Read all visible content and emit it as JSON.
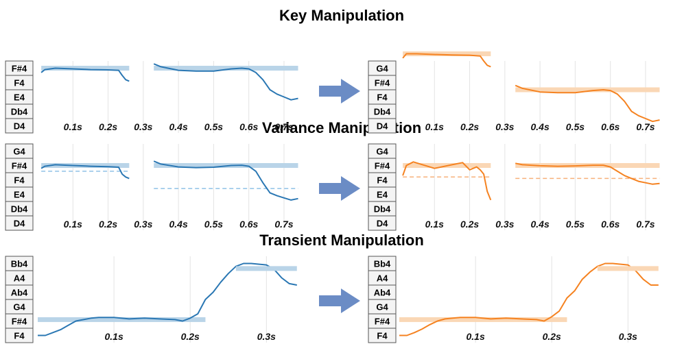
{
  "colors": {
    "blue": "#2a77b3",
    "blue_bar": "#b9d4e8",
    "orange": "#f58220",
    "orange_bar": "#fad7b5",
    "arrow": "#6b8cc5",
    "grid": "#e3e3e3"
  },
  "sections": [
    {
      "title": "Key Manipulation",
      "notes": [
        "D4",
        "Db4",
        "E4",
        "F4",
        "F#4"
      ],
      "notes_right": [
        "D4",
        "Db4",
        "F4",
        "F#4",
        "G4"
      ],
      "ticks": [
        "0.1s",
        "0.2s",
        "0.3s",
        "0.4s",
        "0.5s",
        "0.6s",
        "0.7s"
      ],
      "original": [
        {
          "bar_y": 4.0,
          "points": [
            [
              0.01,
              3.7
            ],
            [
              0.02,
              3.9
            ],
            [
              0.05,
              4.0
            ],
            [
              0.1,
              3.95
            ],
            [
              0.15,
              3.9
            ],
            [
              0.2,
              3.88
            ],
            [
              0.23,
              3.85
            ],
            [
              0.24,
              3.5
            ],
            [
              0.25,
              3.2
            ],
            [
              0.26,
              3.1
            ]
          ]
        },
        {
          "bar_y": 4.0,
          "points": [
            [
              0.33,
              4.3
            ],
            [
              0.35,
              4.1
            ],
            [
              0.4,
              3.85
            ],
            [
              0.45,
              3.8
            ],
            [
              0.5,
              3.8
            ],
            [
              0.55,
              3.95
            ],
            [
              0.58,
              4.0
            ],
            [
              0.6,
              3.95
            ],
            [
              0.62,
              3.7
            ],
            [
              0.64,
              3.2
            ],
            [
              0.66,
              2.5
            ],
            [
              0.68,
              2.2
            ],
            [
              0.7,
              2.0
            ],
            [
              0.72,
              1.8
            ],
            [
              0.74,
              1.9
            ]
          ]
        }
      ],
      "modified": [
        {
          "bar_y": 5.0,
          "points": [
            [
              0.01,
              4.7
            ],
            [
              0.02,
              5.0
            ],
            [
              0.05,
              5.0
            ],
            [
              0.1,
              4.95
            ],
            [
              0.15,
              4.92
            ],
            [
              0.2,
              4.9
            ],
            [
              0.23,
              4.85
            ],
            [
              0.24,
              4.5
            ],
            [
              0.25,
              4.2
            ],
            [
              0.26,
              4.1
            ]
          ]
        },
        {
          "bar_y": 2.5,
          "points": [
            [
              0.33,
              2.8
            ],
            [
              0.35,
              2.6
            ],
            [
              0.4,
              2.35
            ],
            [
              0.45,
              2.3
            ],
            [
              0.5,
              2.3
            ],
            [
              0.55,
              2.45
            ],
            [
              0.58,
              2.5
            ],
            [
              0.6,
              2.45
            ],
            [
              0.62,
              2.2
            ],
            [
              0.64,
              1.7
            ],
            [
              0.66,
              1.0
            ],
            [
              0.68,
              0.7
            ],
            [
              0.7,
              0.5
            ],
            [
              0.72,
              0.3
            ],
            [
              0.74,
              0.4
            ]
          ]
        }
      ]
    },
    {
      "title": "Variance Manipulation",
      "notes": [
        "D4",
        "Db4",
        "E4",
        "F4",
        "F#4",
        "G4"
      ],
      "notes_right": [
        "D4",
        "Db4",
        "E4",
        "F4",
        "F#4",
        "G4"
      ],
      "ticks": [
        "0.1s",
        "0.2s",
        "0.3s",
        "0.4s",
        "0.5s",
        "0.6s",
        "0.7s"
      ],
      "original": [
        {
          "bar_y": 4.0,
          "dash_y": 3.6,
          "points": [
            [
              0.01,
              3.8
            ],
            [
              0.02,
              3.95
            ],
            [
              0.05,
              4.05
            ],
            [
              0.1,
              4.0
            ],
            [
              0.15,
              3.95
            ],
            [
              0.2,
              3.92
            ],
            [
              0.23,
              3.88
            ],
            [
              0.24,
              3.4
            ],
            [
              0.25,
              3.2
            ],
            [
              0.26,
              3.1
            ]
          ]
        },
        {
          "bar_y": 4.0,
          "dash_y": 2.4,
          "points": [
            [
              0.33,
              4.3
            ],
            [
              0.35,
              4.1
            ],
            [
              0.4,
              3.9
            ],
            [
              0.45,
              3.85
            ],
            [
              0.5,
              3.88
            ],
            [
              0.55,
              4.0
            ],
            [
              0.58,
              4.02
            ],
            [
              0.6,
              3.95
            ],
            [
              0.62,
              3.6
            ],
            [
              0.64,
              2.8
            ],
            [
              0.66,
              2.1
            ],
            [
              0.68,
              1.9
            ],
            [
              0.7,
              1.75
            ],
            [
              0.72,
              1.6
            ],
            [
              0.74,
              1.7
            ]
          ]
        }
      ],
      "modified": [
        {
          "bar_y": 4.0,
          "dash_y": 3.2,
          "points": [
            [
              0.01,
              3.3
            ],
            [
              0.02,
              4.0
            ],
            [
              0.04,
              4.25
            ],
            [
              0.06,
              4.1
            ],
            [
              0.1,
              3.8
            ],
            [
              0.15,
              4.05
            ],
            [
              0.18,
              4.2
            ],
            [
              0.2,
              3.7
            ],
            [
              0.22,
              3.9
            ],
            [
              0.23,
              3.7
            ],
            [
              0.24,
              3.4
            ],
            [
              0.25,
              2.2
            ],
            [
              0.26,
              1.6
            ]
          ]
        },
        {
          "bar_y": 4.0,
          "dash_y": 3.1,
          "points": [
            [
              0.33,
              4.15
            ],
            [
              0.35,
              4.05
            ],
            [
              0.4,
              3.98
            ],
            [
              0.45,
              3.95
            ],
            [
              0.5,
              3.97
            ],
            [
              0.55,
              4.02
            ],
            [
              0.58,
              4.02
            ],
            [
              0.6,
              3.9
            ],
            [
              0.62,
              3.6
            ],
            [
              0.64,
              3.3
            ],
            [
              0.66,
              3.1
            ],
            [
              0.68,
              2.9
            ],
            [
              0.7,
              2.8
            ],
            [
              0.72,
              2.7
            ],
            [
              0.74,
              2.75
            ]
          ]
        }
      ]
    },
    {
      "title": "Transient Manipulation",
      "notes": [
        "F4",
        "F#4",
        "G4",
        "Ab4",
        "A4",
        "Bb4"
      ],
      "notes_right": [
        "F4",
        "F#4",
        "G4",
        "Ab4",
        "A4",
        "Bb4"
      ],
      "ticks": [
        "0.1s",
        "0.2s",
        "0.3s"
      ],
      "original": [
        {
          "bar_y": 1.1,
          "points": [
            [
              0.0,
              0.0
            ],
            [
              0.01,
              0.0
            ],
            [
              0.02,
              0.2
            ],
            [
              0.03,
              0.4
            ],
            [
              0.04,
              0.7
            ],
            [
              0.05,
              1.0
            ],
            [
              0.06,
              1.1
            ],
            [
              0.07,
              1.2
            ],
            [
              0.08,
              1.25
            ],
            [
              0.1,
              1.25
            ],
            [
              0.12,
              1.15
            ],
            [
              0.14,
              1.2
            ],
            [
              0.16,
              1.15
            ],
            [
              0.18,
              1.1
            ],
            [
              0.19,
              1.0
            ],
            [
              0.2,
              1.2
            ],
            [
              0.21,
              1.5
            ],
            [
              0.22,
              2.5
            ],
            [
              0.23,
              3.0
            ],
            [
              0.24,
              3.7
            ],
            [
              0.25,
              4.3
            ],
            [
              0.26,
              4.8
            ],
            [
              0.27,
              5.0
            ],
            [
              0.28,
              5.0
            ],
            [
              0.3,
              4.9
            ],
            [
              0.31,
              4.6
            ],
            [
              0.32,
              4.0
            ],
            [
              0.33,
              3.6
            ],
            [
              0.34,
              3.5
            ]
          ]
        },
        {
          "bar_y": 4.65,
          "points": []
        }
      ],
      "modified": [
        {
          "bar_y": 1.1,
          "points": [
            [
              0.0,
              0.0
            ],
            [
              0.01,
              0.0
            ],
            [
              0.02,
              0.2
            ],
            [
              0.03,
              0.45
            ],
            [
              0.04,
              0.75
            ],
            [
              0.05,
              1.0
            ],
            [
              0.06,
              1.15
            ],
            [
              0.07,
              1.2
            ],
            [
              0.08,
              1.25
            ],
            [
              0.1,
              1.25
            ],
            [
              0.12,
              1.15
            ],
            [
              0.14,
              1.2
            ],
            [
              0.16,
              1.15
            ],
            [
              0.18,
              1.1
            ],
            [
              0.19,
              1.0
            ],
            [
              0.2,
              1.3
            ],
            [
              0.21,
              1.7
            ],
            [
              0.22,
              2.6
            ],
            [
              0.23,
              3.1
            ],
            [
              0.24,
              3.9
            ],
            [
              0.25,
              4.4
            ],
            [
              0.26,
              4.8
            ],
            [
              0.27,
              5.0
            ],
            [
              0.28,
              5.0
            ],
            [
              0.3,
              4.9
            ],
            [
              0.31,
              4.5
            ],
            [
              0.32,
              3.9
            ],
            [
              0.33,
              3.5
            ],
            [
              0.34,
              3.5
            ]
          ]
        },
        {
          "bar_y": 4.65,
          "points": []
        }
      ]
    }
  ]
}
